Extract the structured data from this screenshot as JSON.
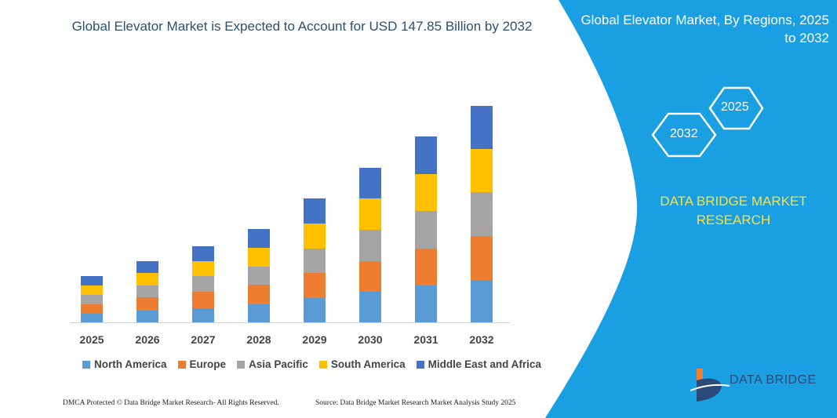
{
  "title": "Global Elevator Market is Expected to Account for USD 147.85 Billion by 2032",
  "side_panel": {
    "title": "Global Elevator Market, By Regions, 2025 to 2032",
    "hex_labels": [
      "2025",
      "2032"
    ],
    "brand": "DATA BRIDGE MARKET RESEARCH",
    "logo_text": "DATA BRIDGE",
    "color": "#1a9fe3"
  },
  "footer": {
    "left": "DMCA Protected © Data Bridge Market Research-  All Rights Reserved.",
    "right": "Source: Data Bridge Market Research  Market Analysis Study 2025"
  },
  "chart_data": {
    "type": "bar",
    "stacked": true,
    "title": "Global Elevator Market is Expected to Account for USD 147.85 Billion by 2032",
    "xlabel": "",
    "ylabel": "",
    "grid": false,
    "legend_position": "bottom",
    "categories": [
      "2025",
      "2026",
      "2027",
      "2028",
      "2029",
      "2030",
      "2031",
      "2032"
    ],
    "series": [
      {
        "name": "North America",
        "color": "#5b9bd5",
        "values": [
          11,
          15,
          18,
          23,
          31,
          39,
          47,
          54
        ]
      },
      {
        "name": "Europe",
        "color": "#ed7d31",
        "values": [
          12,
          17,
          21,
          25,
          32,
          39,
          47,
          56
        ]
      },
      {
        "name": "Asia Pacific",
        "color": "#a5a5a5",
        "values": [
          12,
          15,
          20,
          23,
          31,
          40,
          48,
          56
        ]
      },
      {
        "name": "South America",
        "color": "#ffc000",
        "values": [
          12,
          16,
          19,
          24,
          32,
          40,
          47,
          55
        ]
      },
      {
        "name": "Middle East and Africa",
        "color": "#4472c4",
        "values": [
          12,
          15,
          19,
          24,
          32,
          39,
          48,
          55
        ]
      }
    ]
  }
}
